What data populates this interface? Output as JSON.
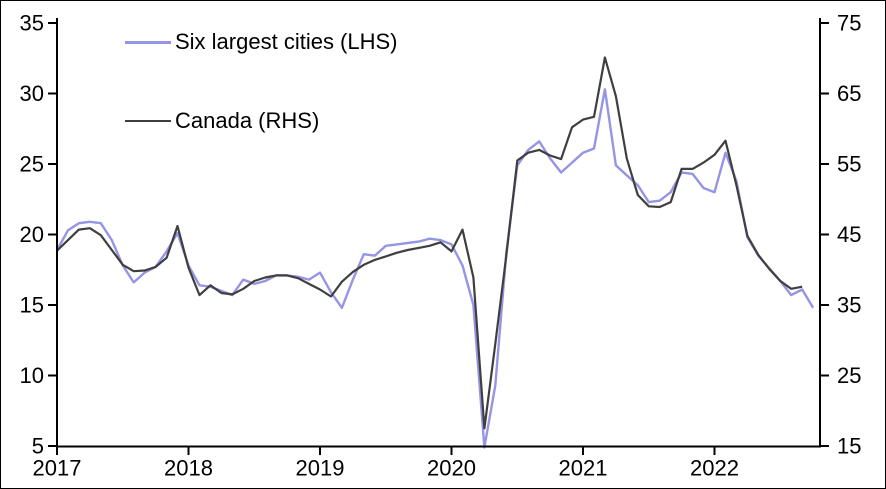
{
  "window": {
    "background": "#ffffff",
    "border_color": "#000000"
  },
  "legend": [
    {
      "label": "Six largest cities (LHS)",
      "color": "#9694e4"
    },
    {
      "label": "Canada (RHS)",
      "color": "#3f3f3f"
    }
  ],
  "chart_data": {
    "type": "line",
    "title": "",
    "xlabel": "",
    "ylabel_left": "",
    "ylabel_right": "",
    "grid": false,
    "legend_position": "top-left-inside",
    "x_axis": {
      "unit": "month",
      "start": "2017-01",
      "tick_labels": [
        "2017",
        "2018",
        "2019",
        "2020",
        "2021",
        "2022"
      ]
    },
    "left_axis": {
      "min": 5,
      "max": 35,
      "ticks": [
        5,
        10,
        15,
        20,
        25,
        30,
        35
      ]
    },
    "right_axis": {
      "min": 15,
      "max": 75,
      "ticks": [
        15,
        25,
        35,
        45,
        55,
        65,
        75
      ]
    },
    "series": [
      {
        "name": "Six largest cities (LHS)",
        "axis": "left",
        "color": "#9694e4",
        "stroke_width": 2.4,
        "start": "2017-01",
        "end": "2022-10",
        "values": [
          18.9,
          20.3,
          20.8,
          20.9,
          20.8,
          19.6,
          17.8,
          16.6,
          17.3,
          17.7,
          18.8,
          20.1,
          17.8,
          16.4,
          16.3,
          16.0,
          15.7,
          16.8,
          16.5,
          16.7,
          17.1,
          17.1,
          17.0,
          16.8,
          17.3,
          15.9,
          14.8,
          16.8,
          18.6,
          18.5,
          19.2,
          19.3,
          19.4,
          19.5,
          19.7,
          19.6,
          19.3,
          17.8,
          15.0,
          4.9,
          9.3,
          18.7,
          24.9,
          26.0,
          26.6,
          25.4,
          24.4,
          25.1,
          25.8,
          26.1,
          30.3,
          24.9,
          24.2,
          23.5,
          22.3,
          22.4,
          23.0,
          24.4,
          24.3,
          23.3,
          23.0,
          25.8,
          23.8,
          19.8,
          18.5,
          17.6,
          16.7,
          15.7,
          16.1,
          14.8
        ]
      },
      {
        "name": "Canada (RHS)",
        "axis": "right",
        "color": "#3f3f3f",
        "stroke_width": 2.2,
        "start": "2017-01",
        "end": "2022-09",
        "values": [
          42.7,
          44.2,
          45.7,
          45.9,
          44.9,
          42.8,
          40.7,
          39.8,
          39.9,
          40.4,
          41.7,
          46.2,
          40.3,
          36.4,
          37.8,
          36.7,
          36.5,
          37.3,
          38.4,
          38.9,
          39.2,
          39.2,
          38.8,
          38.0,
          37.2,
          36.2,
          38.3,
          39.7,
          40.7,
          41.4,
          41.9,
          42.4,
          42.8,
          43.1,
          43.4,
          43.9,
          42.6,
          45.7,
          38.9,
          17.5,
          29.5,
          42.0,
          55.5,
          56.6,
          57.0,
          56.2,
          55.7,
          60.2,
          61.3,
          61.7,
          70.1,
          64.6,
          55.8,
          50.6,
          49.0,
          48.9,
          49.6,
          54.3,
          54.3,
          55.2,
          56.3,
          58.3,
          52.0,
          44.8,
          42.1,
          40.1,
          38.4,
          37.3,
          37.6
        ]
      }
    ]
  }
}
